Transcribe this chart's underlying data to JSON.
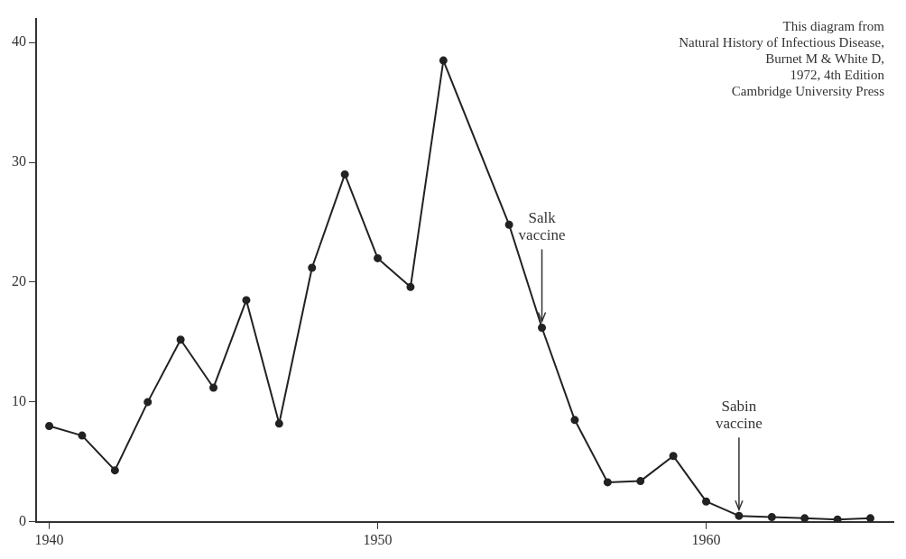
{
  "chart_data": {
    "type": "line",
    "x": [
      1940,
      1941,
      1942,
      1943,
      1944,
      1945,
      1946,
      1947,
      1948,
      1949,
      1950,
      1951,
      1952,
      1954,
      1955,
      1956,
      1957,
      1958,
      1959,
      1960,
      1961,
      1962,
      1963,
      1964,
      1965
    ],
    "series": [
      {
        "color": "#222222",
        "values": [
          8,
          7.2,
          4.3,
          10,
          15.2,
          11.2,
          18.5,
          8.2,
          21.2,
          29,
          22,
          19.6,
          38.5,
          24.8,
          16.2,
          8.5,
          3.3,
          3.4,
          5.5,
          1.7,
          0.5,
          0.4,
          0.3,
          0.2,
          0.3
        ]
      }
    ],
    "xlim": [
      1939.6,
      1965.7
    ],
    "xticks": [
      1940,
      1950,
      1960
    ],
    "ylim": [
      0,
      42
    ],
    "yticks": [
      0,
      10,
      20,
      30,
      40
    ],
    "grid": false,
    "legend": false,
    "marker": "circle",
    "line_style": "solid",
    "annotations": [
      {
        "text": "Salk\nvaccine",
        "x": 1955,
        "y": 16.2
      },
      {
        "text": "Sabin\nvaccine",
        "x": 1961,
        "y": 0.5
      },
      "This diagram from\nNatural History of Infectious Disease,\nBurnet M & White D,\n1972, 4th Edition\nCambridge University Press"
    ]
  }
}
